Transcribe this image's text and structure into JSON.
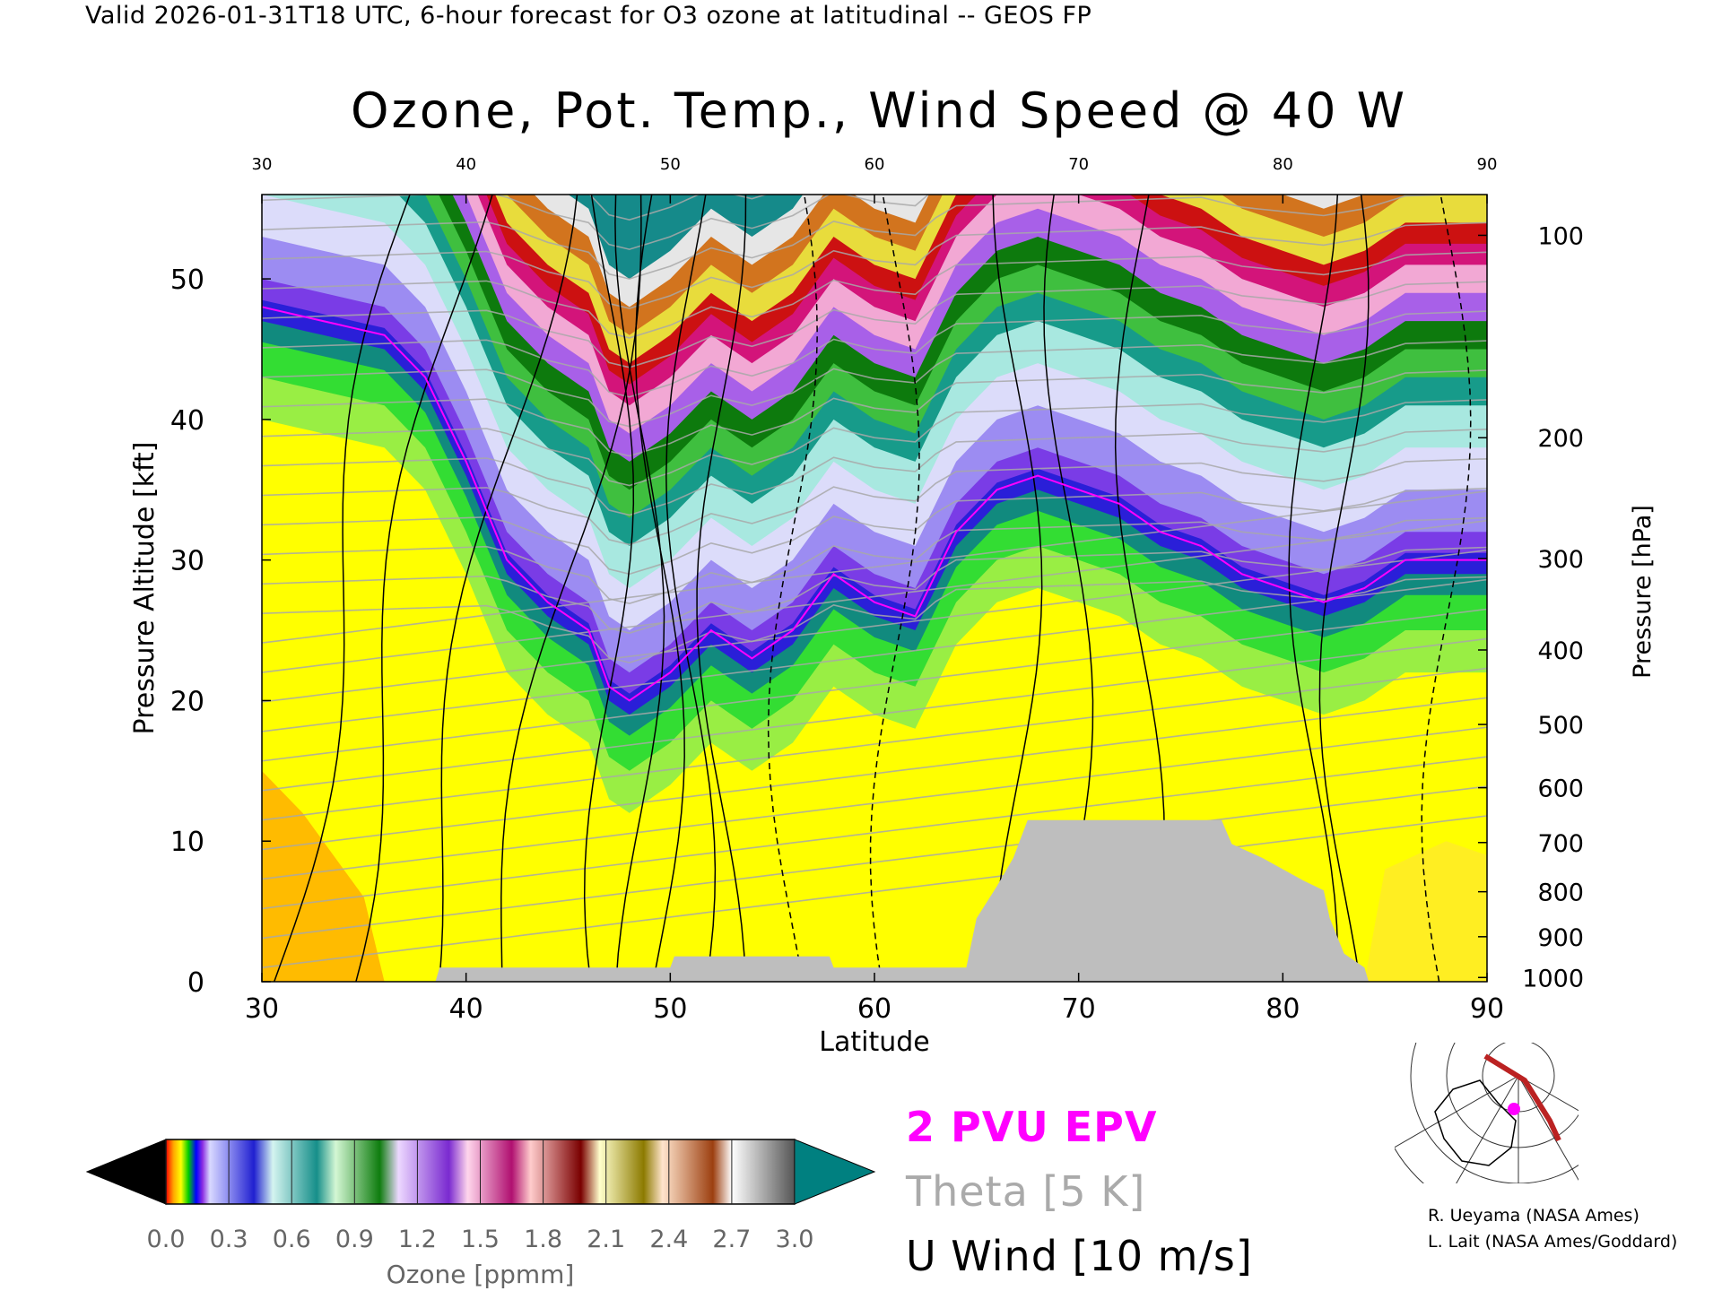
{
  "header": "Valid 2026-01-31T18 UTC, 6-hour forecast for O3 ozone at latitudinal -- GEOS FP",
  "title": "Ozone, Pot. Temp., Wind Speed @ 40 W",
  "chart_data": {
    "type": "heatmap",
    "description_of_fields": "Latitude-altitude cross section of ozone (color fill) with potential temperature (gray contours), zonal wind (black contours) and 2 PVU EPV (magenta)",
    "xlabel": "Latitude",
    "ylabel_left": "Pressure Altitude [kft]",
    "ylabel_right": "Pressure [hPa]",
    "xlim": [
      30,
      90
    ],
    "ylim": [
      0,
      56
    ],
    "x_ticks": [
      30,
      40,
      50,
      60,
      70,
      80,
      90
    ],
    "y_ticks_left": [
      0,
      10,
      20,
      30,
      40,
      50
    ],
    "y_ticks_right": [
      {
        "label": "100",
        "kft": 53.1
      },
      {
        "label": "200",
        "kft": 38.7
      },
      {
        "label": "300",
        "kft": 30.1
      },
      {
        "label": "400",
        "kft": 23.6
      },
      {
        "label": "500",
        "kft": 18.3
      },
      {
        "label": "600",
        "kft": 13.8
      },
      {
        "label": "700",
        "kft": 9.9
      },
      {
        "label": "800",
        "kft": 6.4
      },
      {
        "label": "900",
        "kft": 3.2
      },
      {
        "label": "1000",
        "kft": 0.3
      }
    ],
    "tropopause_kft": [
      [
        30,
        47
      ],
      [
        33,
        46
      ],
      [
        36,
        45
      ],
      [
        38,
        42
      ],
      [
        40,
        36
      ],
      [
        42,
        29
      ],
      [
        44,
        26
      ],
      [
        46,
        24
      ],
      [
        47,
        20
      ],
      [
        48,
        19
      ],
      [
        50,
        21
      ],
      [
        52,
        24
      ],
      [
        54,
        22
      ],
      [
        56,
        24
      ],
      [
        58,
        28
      ],
      [
        60,
        26
      ],
      [
        62,
        25
      ],
      [
        64,
        31
      ],
      [
        66,
        34
      ],
      [
        68,
        35
      ],
      [
        70,
        34
      ],
      [
        72,
        33
      ],
      [
        74,
        31
      ],
      [
        76,
        30
      ],
      [
        78,
        28
      ],
      [
        80,
        27
      ],
      [
        82,
        26
      ],
      [
        84,
        27
      ],
      [
        86,
        29
      ],
      [
        88,
        29
      ],
      [
        90,
        29
      ]
    ],
    "terrain_kft": [
      [
        30,
        0
      ],
      [
        38.5,
        0
      ],
      [
        38.7,
        1
      ],
      [
        50,
        1
      ],
      [
        50.2,
        1.8
      ],
      [
        57.8,
        1.8
      ],
      [
        58,
        1
      ],
      [
        64.5,
        1
      ],
      [
        65,
        4.5
      ],
      [
        66,
        6.8
      ],
      [
        66.8,
        8.8
      ],
      [
        67.5,
        11.5
      ],
      [
        77,
        11.5
      ],
      [
        77.5,
        9.8
      ],
      [
        79,
        8.8
      ],
      [
        81,
        7.2
      ],
      [
        82,
        6.5
      ],
      [
        82.3,
        4.5
      ],
      [
        83,
        2
      ],
      [
        84,
        1
      ],
      [
        84.2,
        0
      ],
      [
        90,
        0
      ]
    ]
  },
  "colorbar": {
    "label": "Ozone [ppmm]",
    "tick_labels": [
      "0.0",
      "0.3",
      "0.6",
      "0.9",
      "1.2",
      "1.5",
      "1.8",
      "2.1",
      "2.4",
      "2.7",
      "3.0"
    ],
    "colors": [
      "#000000",
      "#ffff66",
      "#1b1bd6",
      "#1e9090",
      "#1a8a1a",
      "#8a2be2",
      "#c71585",
      "#8b0000",
      "#b8a400",
      "#b5531e",
      "#777777",
      "#008080"
    ]
  },
  "legend": {
    "epv": "2 PVU EPV",
    "epv_color": "#ff00ff",
    "theta": "Theta [5 K]",
    "theta_color": "#aaaaaa",
    "wind": "U Wind [10 m/s]"
  },
  "credits": {
    "line1": "R. Ueyama (NASA Ames)",
    "line2": "L. Lait (NASA Ames/Goddard)"
  }
}
